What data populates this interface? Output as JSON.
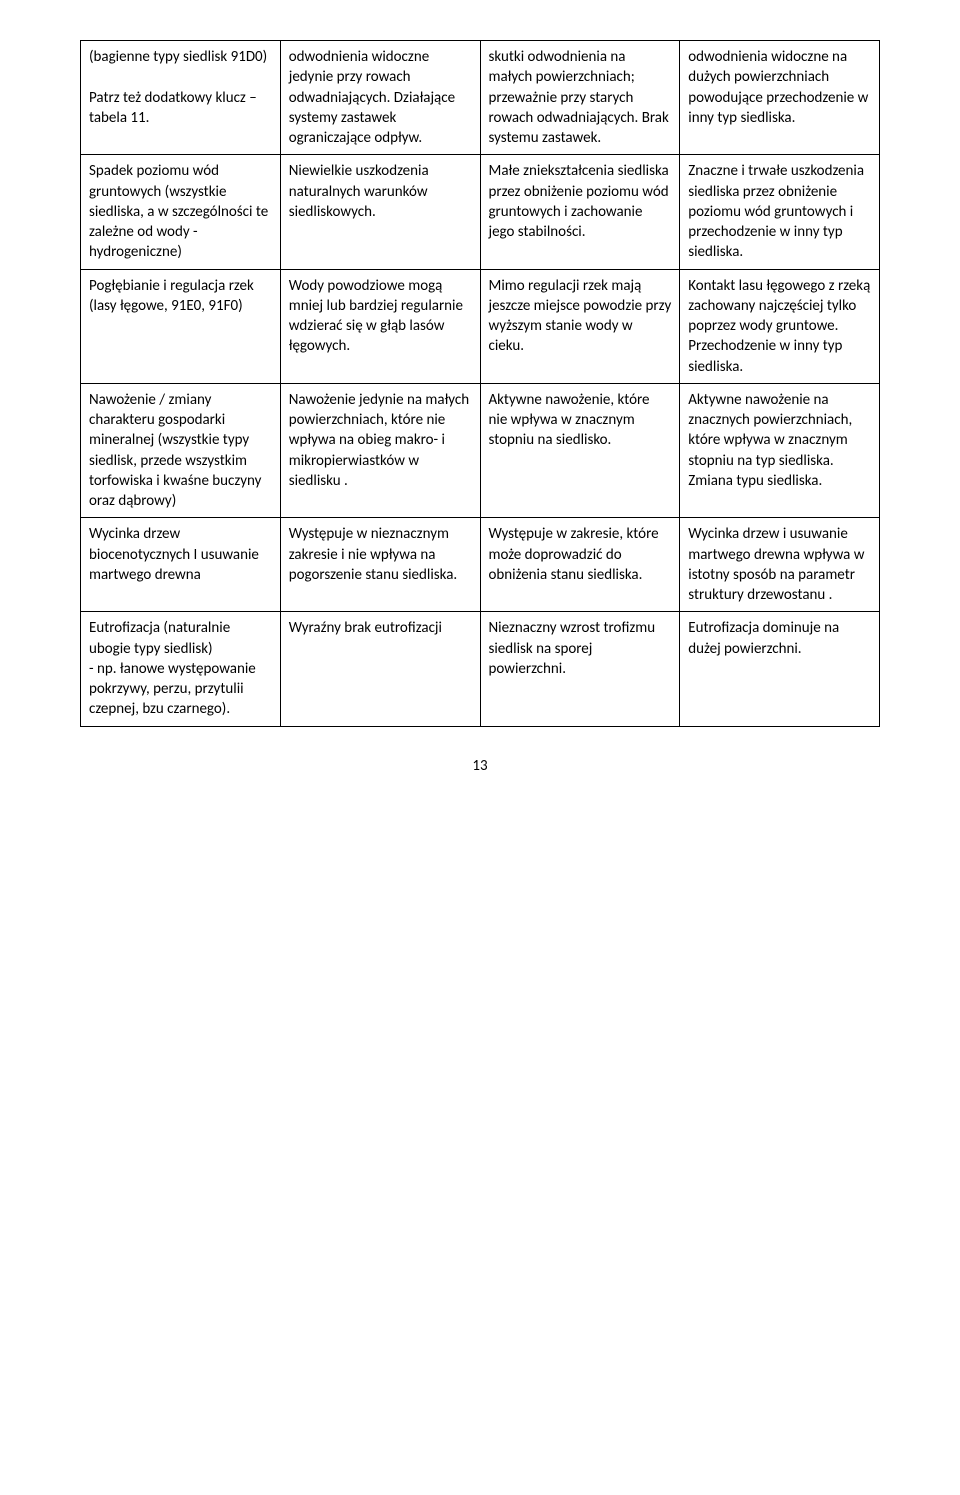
{
  "pageNumber": "13",
  "rows": [
    {
      "c1": "(bagienne typy siedlisk 91D0)\n\nPatrz też dodatkowy klucz – tabela 11.",
      "c2": "odwodnienia widoczne jedynie przy rowach odwadniających. Działające systemy zastawek ograniczające odpływ.",
      "c3": "skutki odwodnienia na małych powierzchniach; przeważnie przy starych rowach odwadniających. Brak systemu zastawek.",
      "c4": "odwodnienia widoczne na dużych powierzchniach powodujące przechodzenie w inny typ siedliska."
    },
    {
      "c1": "Spadek poziomu wód gruntowych (wszystkie siedliska, a w szczególności te zależne od wody - hydrogeniczne)",
      "c2": "Niewielkie uszkodzenia naturalnych warunków siedliskowych.",
      "c3": "Małe zniekształcenia siedliska przez obniżenie poziomu wód gruntowych i zachowanie jego stabilności.",
      "c4": "Znaczne i trwałe uszkodzenia siedliska przez obniżenie poziomu wód gruntowych i przechodzenie w inny typ siedliska."
    },
    {
      "c1": "Pogłębianie i regulacja rzek (lasy łęgowe, 91E0, 91F0)",
      "c2": "Wody powodziowe mogą mniej lub bardziej regularnie wdzierać się w głąb lasów łęgowych.",
      "c3": "Mimo regulacji rzek mają jeszcze miejsce powodzie przy wyższym stanie wody w cieku.",
      "c4": "Kontakt lasu łęgowego z rzeką zachowany najczęściej tylko poprzez wody gruntowe. Przechodzenie w inny typ siedliska."
    },
    {
      "c1": "Nawożenie / zmiany charakteru gospodarki mineralnej (wszystkie typy siedlisk, przede wszystkim torfowiska i kwaśne buczyny oraz dąbrowy)",
      "c2": "Nawożenie jedynie na małych powierzchniach, które nie wpływa na obieg makro- i mikropierwiastków w siedlisku .",
      "c3": "Aktywne nawożenie, które nie wpływa w znacznym stopniu na siedlisko.",
      "c4": "Aktywne nawożenie na znacznych powierzchniach, które wpływa w znacznym stopniu na typ siedliska. Zmiana typu siedliska."
    },
    {
      "c1": "Wycinka drzew biocenotycznych  I usuwanie martwego drewna",
      "c2": "Występuje w nieznacznym zakresie i nie wpływa na pogorszenie stanu siedliska.",
      "c3": "Występuje w zakresie, które może doprowadzić do obniżenia stanu siedliska.",
      "c4": "Wycinka drzew i usuwanie martwego drewna wpływa w istotny sposób na parametr struktury drzewostanu ."
    },
    {
      "c1": "Eutrofizacja (naturalnie ubogie typy siedlisk)\n - np. łanowe występowanie pokrzywy, perzu, przytulii czepnej, bzu czarnego).",
      "c2": "Wyraźny brak eutrofizacji",
      "c3": "Nieznaczny wzrost trofizmu siedlisk na sporej powierzchni.",
      "c4": "Eutrofizacja dominuje na dużej powierzchni."
    }
  ]
}
